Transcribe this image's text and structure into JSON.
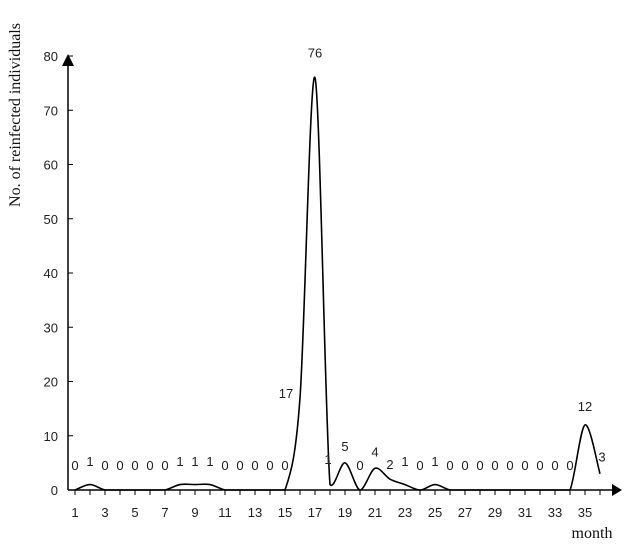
{
  "chart_data": {
    "type": "line",
    "title": "",
    "xlabel": "month",
    "ylabel": "No. of reinfected individuals",
    "xlim": [
      1,
      36
    ],
    "ylim": [
      0,
      80
    ],
    "x_ticks": [
      1,
      3,
      5,
      7,
      9,
      11,
      13,
      15,
      17,
      19,
      21,
      23,
      25,
      27,
      29,
      31,
      33,
      35
    ],
    "y_ticks": [
      0,
      10,
      20,
      30,
      40,
      50,
      60,
      70,
      80
    ],
    "grid": false,
    "legend": "none",
    "line_color": "#000000",
    "series": [
      {
        "x": [
          1,
          2,
          3,
          4,
          5,
          6,
          7,
          8,
          9,
          10,
          11,
          12,
          13,
          14,
          15,
          16,
          17,
          18,
          19,
          20,
          21,
          22,
          23,
          24,
          25,
          26,
          27,
          28,
          29,
          30,
          31,
          32,
          33,
          34,
          35,
          36
        ],
        "values": [
          0,
          1,
          0,
          0,
          0,
          0,
          0,
          1,
          1,
          1,
          0,
          0,
          0,
          0,
          0,
          17,
          76,
          1,
          5,
          0,
          4,
          2,
          1,
          0,
          1,
          0,
          0,
          0,
          0,
          0,
          0,
          0,
          0,
          0,
          12,
          3
        ]
      }
    ],
    "data_labels": [
      "0",
      "1",
      "0",
      "0",
      "0",
      "0",
      "0",
      "1",
      "1",
      "1",
      "0",
      "0",
      "0",
      "0",
      "0",
      "17",
      "76",
      "1",
      "5",
      "0",
      "4",
      "2",
      "1",
      "0",
      "1",
      "0",
      "0",
      "0",
      "0",
      "0",
      "0",
      "0",
      "0",
      "0",
      "12",
      "3"
    ]
  }
}
